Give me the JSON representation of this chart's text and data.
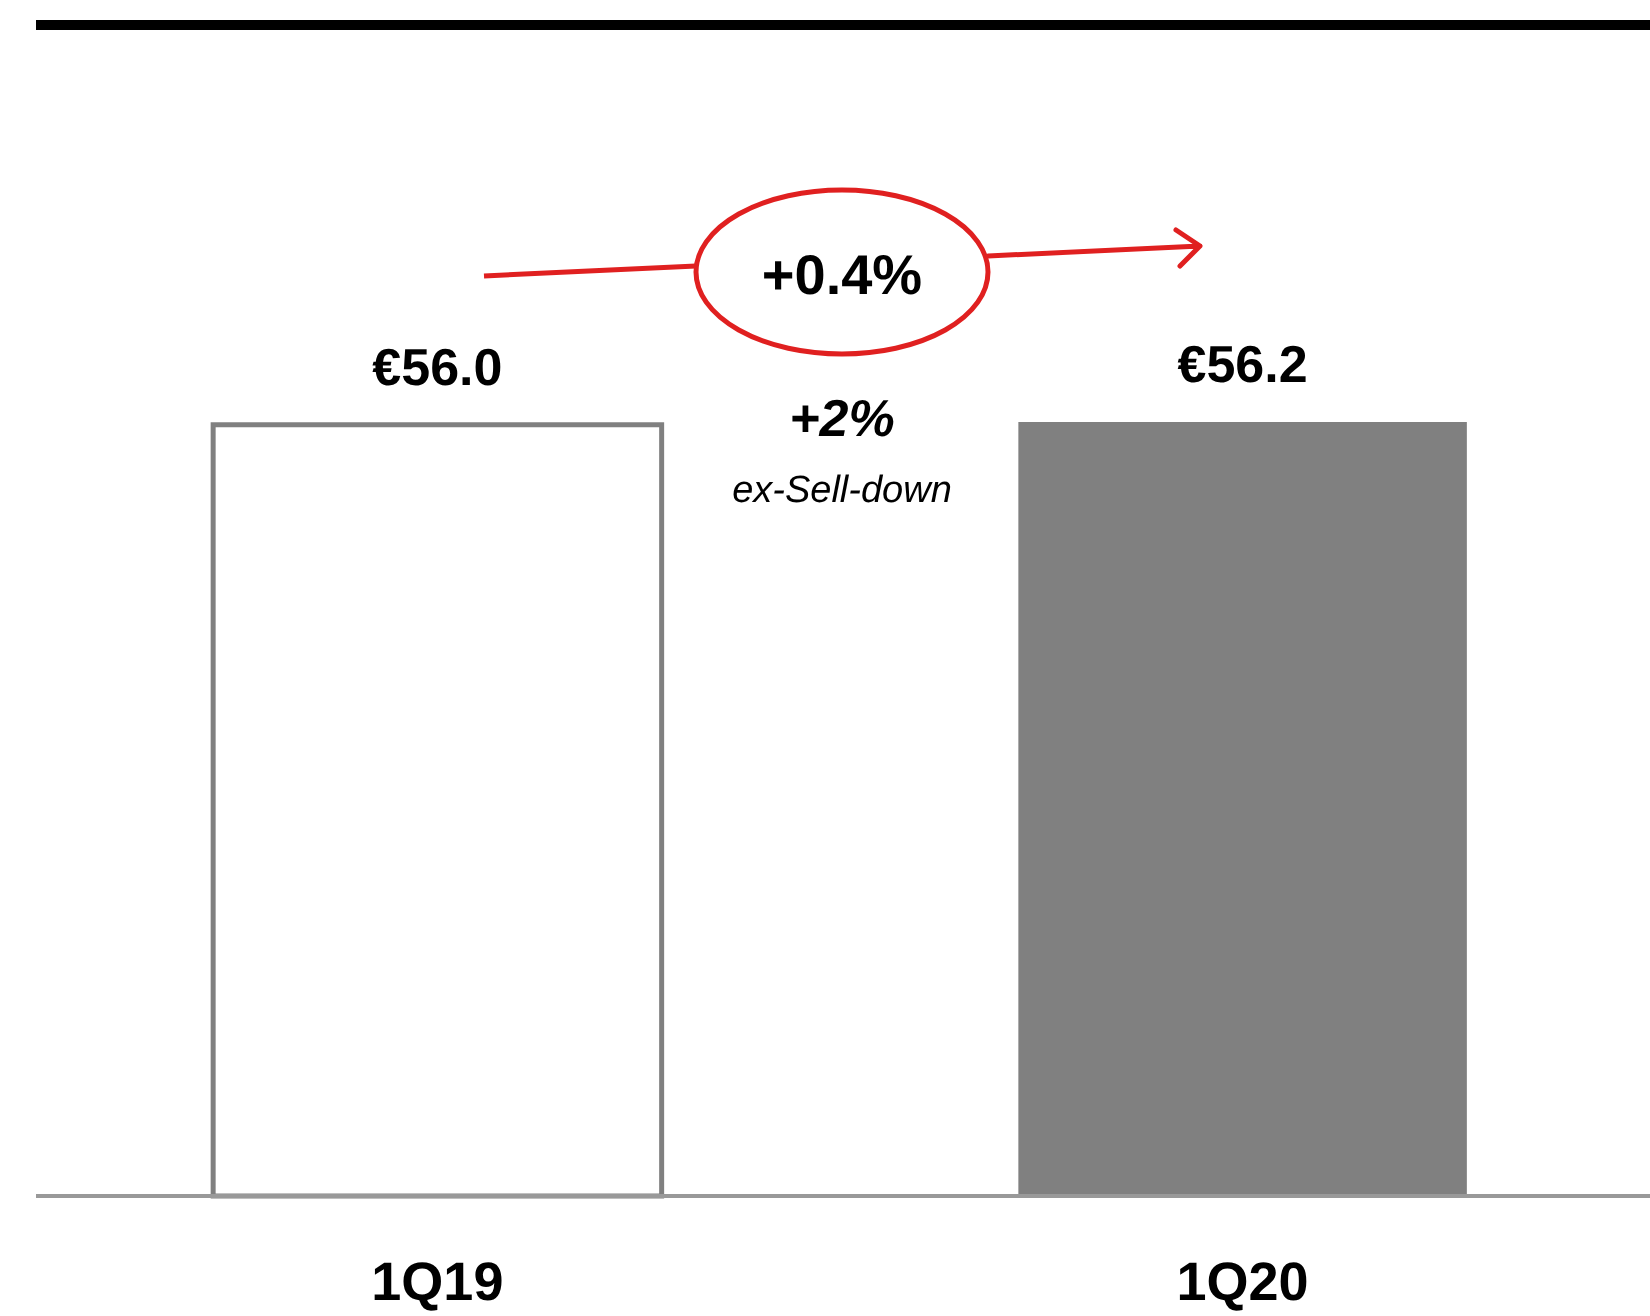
{
  "chart_data": {
    "type": "bar",
    "categories": [
      "1Q19",
      "1Q20"
    ],
    "values": [
      56.0,
      56.2
    ],
    "colors": [
      "#ffffff",
      "#808080"
    ],
    "value_labels": [
      "€56.0",
      "€56.2"
    ],
    "annotations": [
      "+0.4%",
      "+2%",
      "ex-Sell-down"
    ]
  }
}
